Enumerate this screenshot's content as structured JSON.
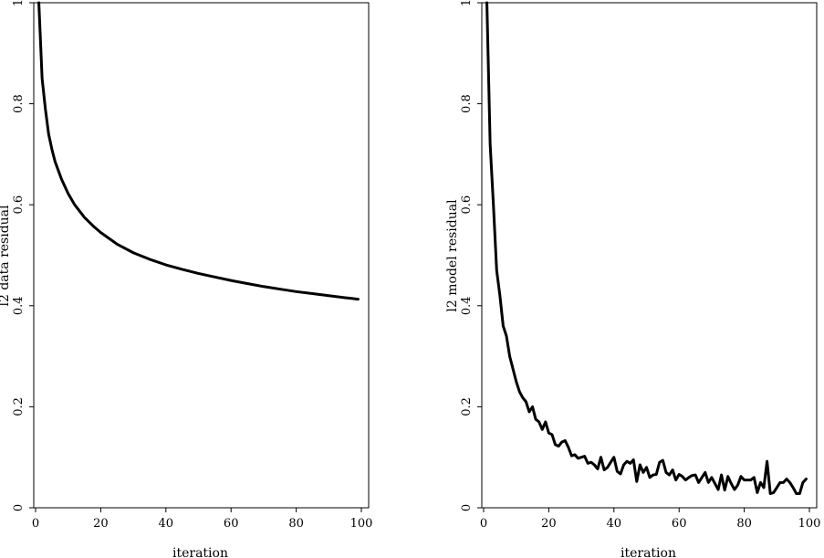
{
  "chart_data": [
    {
      "type": "line",
      "xlabel": "iteration",
      "ylabel": "l2 data residual",
      "xlim": [
        0,
        100
      ],
      "ylim": [
        0,
        1
      ],
      "xticks": [
        0,
        20,
        40,
        60,
        80,
        100
      ],
      "yticks": [
        0,
        0.2,
        0.4,
        0.6,
        0.8,
        1
      ],
      "xtick_labels": [
        "0",
        "20",
        "40",
        "60",
        "80",
        "100"
      ],
      "ytick_labels": [
        "0",
        "0.2",
        "0.4",
        "0.6",
        "0.8",
        "1"
      ],
      "grid": false,
      "x": [
        1,
        2,
        3,
        4,
        5,
        6,
        8,
        10,
        12,
        15,
        18,
        20,
        25,
        30,
        35,
        40,
        45,
        50,
        55,
        60,
        65,
        70,
        75,
        80,
        85,
        90,
        95,
        99
      ],
      "y": [
        1.0,
        0.85,
        0.79,
        0.74,
        0.71,
        0.685,
        0.65,
        0.622,
        0.6,
        0.575,
        0.556,
        0.545,
        0.522,
        0.505,
        0.492,
        0.481,
        0.472,
        0.464,
        0.457,
        0.45,
        0.444,
        0.438,
        0.433,
        0.428,
        0.424,
        0.42,
        0.416,
        0.413
      ]
    },
    {
      "type": "line",
      "xlabel": "iteration",
      "ylabel": "l2 model residual",
      "xlim": [
        0,
        100
      ],
      "ylim": [
        0,
        1
      ],
      "xticks": [
        0,
        20,
        40,
        60,
        80,
        100
      ],
      "yticks": [
        0,
        0.2,
        0.4,
        0.6,
        0.8,
        1
      ],
      "xtick_labels": [
        "0",
        "20",
        "40",
        "60",
        "80",
        "100"
      ],
      "ytick_labels": [
        "0",
        "0.2",
        "0.4",
        "0.6",
        "0.8",
        "1"
      ],
      "grid": false,
      "x": [
        1,
        2,
        3,
        4,
        5,
        6,
        7,
        8,
        9,
        10,
        11,
        12,
        13,
        14,
        15,
        16,
        17,
        18,
        19,
        20,
        21,
        22,
        23,
        24,
        25,
        26,
        27,
        28,
        29,
        30,
        31,
        32,
        33,
        34,
        35,
        36,
        37,
        38,
        39,
        40,
        41,
        42,
        43,
        44,
        45,
        46,
        47,
        48,
        49,
        50,
        51,
        52,
        53,
        54,
        55,
        56,
        57,
        58,
        59,
        60,
        61,
        62,
        63,
        64,
        65,
        66,
        67,
        68,
        69,
        70,
        71,
        72,
        73,
        74,
        75,
        76,
        77,
        78,
        79,
        80,
        81,
        82,
        83,
        84,
        85,
        86,
        87,
        88,
        89,
        90,
        91,
        92,
        93,
        94,
        95,
        96,
        97,
        98,
        99
      ],
      "y": [
        1.0,
        0.72,
        0.6,
        0.47,
        0.42,
        0.36,
        0.34,
        0.3,
        0.275,
        0.25,
        0.23,
        0.218,
        0.21,
        0.19,
        0.2,
        0.175,
        0.17,
        0.155,
        0.17,
        0.148,
        0.145,
        0.125,
        0.122,
        0.13,
        0.133,
        0.12,
        0.103,
        0.105,
        0.098,
        0.1,
        0.102,
        0.088,
        0.09,
        0.085,
        0.077,
        0.1,
        0.075,
        0.08,
        0.09,
        0.1,
        0.072,
        0.067,
        0.085,
        0.092,
        0.088,
        0.095,
        0.052,
        0.085,
        0.07,
        0.08,
        0.06,
        0.065,
        0.066,
        0.09,
        0.094,
        0.07,
        0.065,
        0.075,
        0.055,
        0.066,
        0.062,
        0.055,
        0.06,
        0.064,
        0.065,
        0.05,
        0.06,
        0.07,
        0.05,
        0.06,
        0.048,
        0.036,
        0.065,
        0.035,
        0.062,
        0.048,
        0.036,
        0.045,
        0.062,
        0.055,
        0.055,
        0.055,
        0.06,
        0.03,
        0.05,
        0.04,
        0.092,
        0.028,
        0.03,
        0.04,
        0.05,
        0.05,
        0.057,
        0.05,
        0.04,
        0.028,
        0.028,
        0.05,
        0.057
      ]
    }
  ]
}
